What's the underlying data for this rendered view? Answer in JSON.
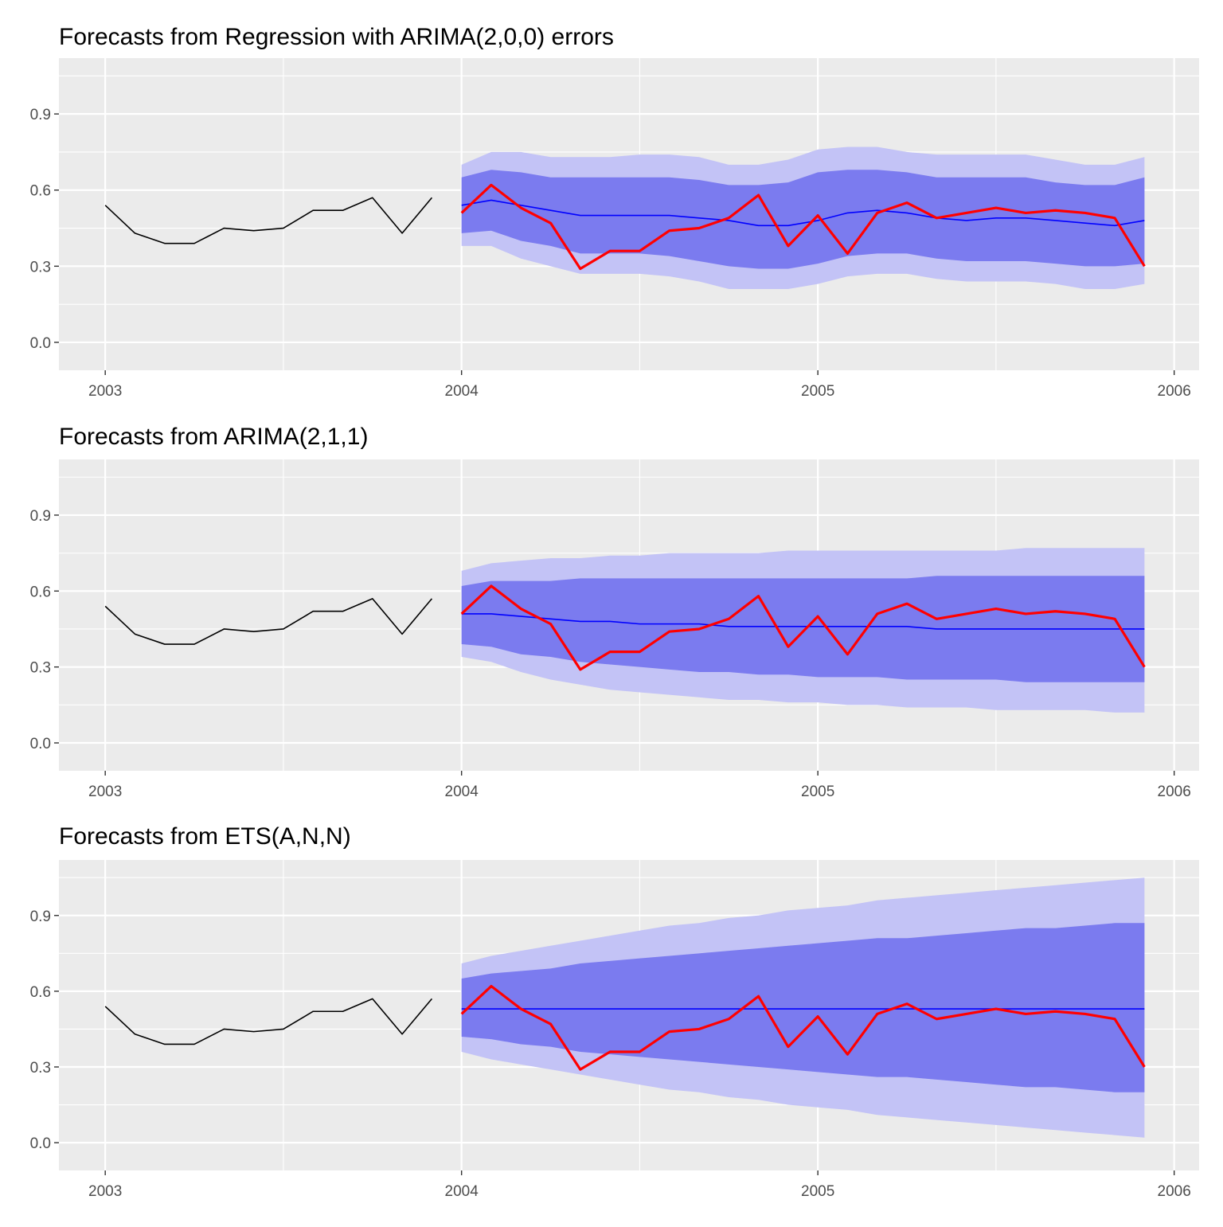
{
  "colors": {
    "panel_bg": "#ebebeb",
    "grid": "#ffffff",
    "history_line": "#000000",
    "mean_line": "#0000ff",
    "actual_line": "#ff0000",
    "band_80": "#7b7bef",
    "band_95": "#c3c3f6"
  },
  "chart_data": [
    {
      "type": "line",
      "title": "Forecasts from Regression with ARIMA(2,0,0) errors",
      "xlabel": "",
      "ylabel": "",
      "xlim": [
        2002.87,
        2006.07
      ],
      "ylim": [
        -0.11,
        1.12
      ],
      "x_ticks": [
        2003,
        2004,
        2005,
        2006
      ],
      "x_tick_labels": [
        "2003",
        "2004",
        "2005",
        "2006"
      ],
      "y_ticks": [
        0,
        0.3,
        0.6,
        0.9
      ],
      "y_tick_labels": [
        "0.0",
        "0.3",
        "0.6",
        "0.9"
      ],
      "grid": true,
      "history": {
        "x": [
          2003.0,
          2003.0833,
          2003.1667,
          2003.25,
          2003.3333,
          2003.4167,
          2003.5,
          2003.5833,
          2003.6667,
          2003.75,
          2003.8333,
          2003.9167
        ],
        "values": [
          0.54,
          0.43,
          0.39,
          0.39,
          0.45,
          0.44,
          0.45,
          0.52,
          0.52,
          0.57,
          0.43,
          0.57
        ]
      },
      "forecast": {
        "x": [
          2004.0,
          2004.0833,
          2004.1667,
          2004.25,
          2004.3333,
          2004.4167,
          2004.5,
          2004.5833,
          2004.6667,
          2004.75,
          2004.8333,
          2004.9167,
          2005.0,
          2005.0833,
          2005.1667,
          2005.25,
          2005.3333,
          2005.4167,
          2005.5,
          2005.5833,
          2005.6667,
          2005.75,
          2005.8333,
          2005.9167
        ],
        "mean": [
          0.54,
          0.56,
          0.54,
          0.52,
          0.5,
          0.5,
          0.5,
          0.5,
          0.49,
          0.48,
          0.46,
          0.46,
          0.48,
          0.51,
          0.52,
          0.51,
          0.49,
          0.48,
          0.49,
          0.49,
          0.48,
          0.47,
          0.46,
          0.48
        ],
        "lo80": [
          0.43,
          0.44,
          0.4,
          0.38,
          0.35,
          0.35,
          0.35,
          0.34,
          0.32,
          0.3,
          0.29,
          0.29,
          0.31,
          0.34,
          0.35,
          0.35,
          0.33,
          0.32,
          0.32,
          0.32,
          0.31,
          0.3,
          0.3,
          0.31
        ],
        "hi80": [
          0.65,
          0.68,
          0.67,
          0.65,
          0.65,
          0.65,
          0.65,
          0.65,
          0.64,
          0.62,
          0.62,
          0.63,
          0.67,
          0.68,
          0.68,
          0.67,
          0.65,
          0.65,
          0.65,
          0.65,
          0.63,
          0.62,
          0.62,
          0.65
        ],
        "lo95": [
          0.38,
          0.38,
          0.33,
          0.3,
          0.27,
          0.27,
          0.27,
          0.26,
          0.24,
          0.21,
          0.21,
          0.21,
          0.23,
          0.26,
          0.27,
          0.27,
          0.25,
          0.24,
          0.24,
          0.24,
          0.23,
          0.21,
          0.21,
          0.23
        ],
        "hi95": [
          0.7,
          0.75,
          0.75,
          0.73,
          0.73,
          0.73,
          0.74,
          0.74,
          0.73,
          0.7,
          0.7,
          0.72,
          0.76,
          0.77,
          0.77,
          0.75,
          0.74,
          0.74,
          0.74,
          0.74,
          0.72,
          0.7,
          0.7,
          0.73
        ]
      },
      "actual": {
        "x": [
          2004.0,
          2004.0833,
          2004.1667,
          2004.25,
          2004.3333,
          2004.4167,
          2004.5,
          2004.5833,
          2004.6667,
          2004.75,
          2004.8333,
          2004.9167,
          2005.0,
          2005.0833,
          2005.1667,
          2005.25,
          2005.3333,
          2005.4167,
          2005.5,
          2005.5833,
          2005.6667,
          2005.75,
          2005.8333,
          2005.9167
        ],
        "values": [
          0.51,
          0.62,
          0.53,
          0.47,
          0.29,
          0.36,
          0.36,
          0.44,
          0.45,
          0.49,
          0.58,
          0.38,
          0.5,
          0.35,
          0.51,
          0.55,
          0.49,
          0.51,
          0.53,
          0.51,
          0.52,
          0.51,
          0.49,
          0.3
        ]
      }
    },
    {
      "type": "line",
      "title": "Forecasts from ARIMA(2,1,1)",
      "xlabel": "",
      "ylabel": "",
      "xlim": [
        2002.87,
        2006.07
      ],
      "ylim": [
        -0.11,
        1.12
      ],
      "x_ticks": [
        2003,
        2004,
        2005,
        2006
      ],
      "x_tick_labels": [
        "2003",
        "2004",
        "2005",
        "2006"
      ],
      "y_ticks": [
        0,
        0.3,
        0.6,
        0.9
      ],
      "y_tick_labels": [
        "0.0",
        "0.3",
        "0.6",
        "0.9"
      ],
      "grid": true,
      "history": {
        "x": [
          2003.0,
          2003.0833,
          2003.1667,
          2003.25,
          2003.3333,
          2003.4167,
          2003.5,
          2003.5833,
          2003.6667,
          2003.75,
          2003.8333,
          2003.9167
        ],
        "values": [
          0.54,
          0.43,
          0.39,
          0.39,
          0.45,
          0.44,
          0.45,
          0.52,
          0.52,
          0.57,
          0.43,
          0.57
        ]
      },
      "forecast": {
        "x": [
          2004.0,
          2004.0833,
          2004.1667,
          2004.25,
          2004.3333,
          2004.4167,
          2004.5,
          2004.5833,
          2004.6667,
          2004.75,
          2004.8333,
          2004.9167,
          2005.0,
          2005.0833,
          2005.1667,
          2005.25,
          2005.3333,
          2005.4167,
          2005.5,
          2005.5833,
          2005.6667,
          2005.75,
          2005.8333,
          2005.9167
        ],
        "mean": [
          0.51,
          0.51,
          0.5,
          0.49,
          0.48,
          0.48,
          0.47,
          0.47,
          0.47,
          0.46,
          0.46,
          0.46,
          0.46,
          0.46,
          0.46,
          0.46,
          0.45,
          0.45,
          0.45,
          0.45,
          0.45,
          0.45,
          0.45,
          0.45
        ],
        "lo80": [
          0.39,
          0.38,
          0.35,
          0.34,
          0.32,
          0.31,
          0.3,
          0.29,
          0.28,
          0.28,
          0.27,
          0.27,
          0.26,
          0.26,
          0.26,
          0.25,
          0.25,
          0.25,
          0.25,
          0.24,
          0.24,
          0.24,
          0.24,
          0.24
        ],
        "hi80": [
          0.62,
          0.64,
          0.64,
          0.64,
          0.65,
          0.65,
          0.65,
          0.65,
          0.65,
          0.65,
          0.65,
          0.65,
          0.65,
          0.65,
          0.65,
          0.65,
          0.66,
          0.66,
          0.66,
          0.66,
          0.66,
          0.66,
          0.66,
          0.66
        ],
        "lo95": [
          0.34,
          0.32,
          0.28,
          0.25,
          0.23,
          0.21,
          0.2,
          0.19,
          0.18,
          0.17,
          0.17,
          0.16,
          0.16,
          0.15,
          0.15,
          0.14,
          0.14,
          0.14,
          0.13,
          0.13,
          0.13,
          0.13,
          0.12,
          0.12
        ],
        "hi95": [
          0.68,
          0.71,
          0.72,
          0.73,
          0.73,
          0.74,
          0.74,
          0.75,
          0.75,
          0.75,
          0.75,
          0.76,
          0.76,
          0.76,
          0.76,
          0.76,
          0.76,
          0.76,
          0.76,
          0.77,
          0.77,
          0.77,
          0.77,
          0.77
        ]
      },
      "actual": {
        "x": [
          2004.0,
          2004.0833,
          2004.1667,
          2004.25,
          2004.3333,
          2004.4167,
          2004.5,
          2004.5833,
          2004.6667,
          2004.75,
          2004.8333,
          2004.9167,
          2005.0,
          2005.0833,
          2005.1667,
          2005.25,
          2005.3333,
          2005.4167,
          2005.5,
          2005.5833,
          2005.6667,
          2005.75,
          2005.8333,
          2005.9167
        ],
        "values": [
          0.51,
          0.62,
          0.53,
          0.47,
          0.29,
          0.36,
          0.36,
          0.44,
          0.45,
          0.49,
          0.58,
          0.38,
          0.5,
          0.35,
          0.51,
          0.55,
          0.49,
          0.51,
          0.53,
          0.51,
          0.52,
          0.51,
          0.49,
          0.3
        ]
      }
    },
    {
      "type": "line",
      "title": "Forecasts from ETS(A,N,N)",
      "xlabel": "",
      "ylabel": "",
      "xlim": [
        2002.87,
        2006.07
      ],
      "ylim": [
        -0.11,
        1.12
      ],
      "x_ticks": [
        2003,
        2004,
        2005,
        2006
      ],
      "x_tick_labels": [
        "2003",
        "2004",
        "2005",
        "2006"
      ],
      "y_ticks": [
        0,
        0.3,
        0.6,
        0.9
      ],
      "y_tick_labels": [
        "0.0",
        "0.3",
        "0.6",
        "0.9"
      ],
      "grid": true,
      "history": {
        "x": [
          2003.0,
          2003.0833,
          2003.1667,
          2003.25,
          2003.3333,
          2003.4167,
          2003.5,
          2003.5833,
          2003.6667,
          2003.75,
          2003.8333,
          2003.9167
        ],
        "values": [
          0.54,
          0.43,
          0.39,
          0.39,
          0.45,
          0.44,
          0.45,
          0.52,
          0.52,
          0.57,
          0.43,
          0.57
        ]
      },
      "forecast": {
        "x": [
          2004.0,
          2004.0833,
          2004.1667,
          2004.25,
          2004.3333,
          2004.4167,
          2004.5,
          2004.5833,
          2004.6667,
          2004.75,
          2004.8333,
          2004.9167,
          2005.0,
          2005.0833,
          2005.1667,
          2005.25,
          2005.3333,
          2005.4167,
          2005.5,
          2005.5833,
          2005.6667,
          2005.75,
          2005.8333,
          2005.9167
        ],
        "mean": [
          0.53,
          0.53,
          0.53,
          0.53,
          0.53,
          0.53,
          0.53,
          0.53,
          0.53,
          0.53,
          0.53,
          0.53,
          0.53,
          0.53,
          0.53,
          0.53,
          0.53,
          0.53,
          0.53,
          0.53,
          0.53,
          0.53,
          0.53,
          0.53
        ],
        "lo80": [
          0.42,
          0.41,
          0.39,
          0.38,
          0.36,
          0.35,
          0.34,
          0.33,
          0.32,
          0.31,
          0.3,
          0.29,
          0.28,
          0.27,
          0.26,
          0.26,
          0.25,
          0.24,
          0.23,
          0.22,
          0.22,
          0.21,
          0.2,
          0.2
        ],
        "hi80": [
          0.65,
          0.67,
          0.68,
          0.69,
          0.71,
          0.72,
          0.73,
          0.74,
          0.75,
          0.76,
          0.77,
          0.78,
          0.79,
          0.8,
          0.81,
          0.81,
          0.82,
          0.83,
          0.84,
          0.85,
          0.85,
          0.86,
          0.87,
          0.87
        ],
        "lo95": [
          0.36,
          0.33,
          0.31,
          0.29,
          0.27,
          0.25,
          0.23,
          0.21,
          0.2,
          0.18,
          0.17,
          0.15,
          0.14,
          0.13,
          0.11,
          0.1,
          0.09,
          0.08,
          0.07,
          0.06,
          0.05,
          0.04,
          0.03,
          0.02
        ],
        "hi95": [
          0.71,
          0.74,
          0.76,
          0.78,
          0.8,
          0.82,
          0.84,
          0.86,
          0.87,
          0.89,
          0.9,
          0.92,
          0.93,
          0.94,
          0.96,
          0.97,
          0.98,
          0.99,
          1.0,
          1.01,
          1.02,
          1.03,
          1.04,
          1.05
        ]
      },
      "actual": {
        "x": [
          2004.0,
          2004.0833,
          2004.1667,
          2004.25,
          2004.3333,
          2004.4167,
          2004.5,
          2004.5833,
          2004.6667,
          2004.75,
          2004.8333,
          2004.9167,
          2005.0,
          2005.0833,
          2005.1667,
          2005.25,
          2005.3333,
          2005.4167,
          2005.5,
          2005.5833,
          2005.6667,
          2005.75,
          2005.8333,
          2005.9167
        ],
        "values": [
          0.51,
          0.62,
          0.53,
          0.47,
          0.29,
          0.36,
          0.36,
          0.44,
          0.45,
          0.49,
          0.58,
          0.38,
          0.5,
          0.35,
          0.51,
          0.55,
          0.49,
          0.51,
          0.53,
          0.51,
          0.52,
          0.51,
          0.49,
          0.3
        ]
      }
    }
  ]
}
